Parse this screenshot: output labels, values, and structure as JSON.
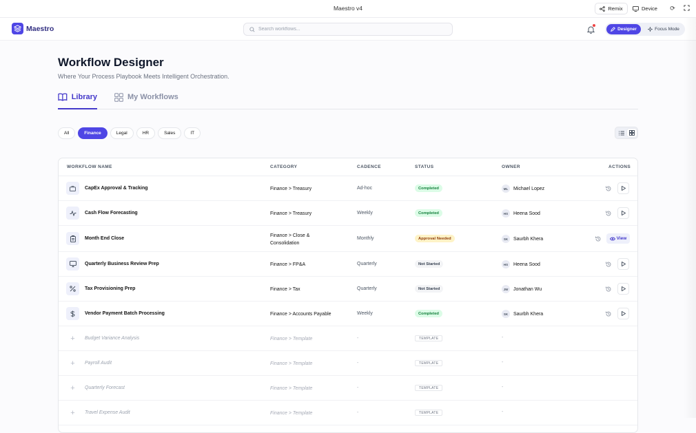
{
  "window": {
    "title": "Maestro v4",
    "remix_label": "Remix",
    "device_label": "Device"
  },
  "header": {
    "brand": "Maestro",
    "search_placeholder": "Search workflows...",
    "modes": {
      "designer": "Designer",
      "focus": "Focus Mode"
    }
  },
  "page": {
    "title": "Workflow Designer",
    "subtitle": "Where Your Process Playbook Meets Intelligent Orchestration.",
    "tabs": {
      "library": "Library",
      "my_workflows": "My Workflows"
    }
  },
  "filters": {
    "chips": [
      "All",
      "Finance",
      "Legal",
      "HR",
      "Sales",
      "IT"
    ],
    "active": "Finance"
  },
  "table": {
    "columns": [
      "WORKFLOW NAME",
      "CATEGORY",
      "CADENCE",
      "STATUS",
      "OWNER",
      "ACTIONS"
    ],
    "view_label": "View",
    "rows": [
      {
        "name": "CapEx Approval & Tracking",
        "category": "Finance > Treasury",
        "cadence": "Ad-hoc",
        "status": "Completed",
        "owner_initials": "ML",
        "owner": "Michael Lopez"
      },
      {
        "name": "Cash Flow Forecasting",
        "category": "Finance > Treasury",
        "cadence": "Weekly",
        "status": "Completed",
        "owner_initials": "HS",
        "owner": "Heena Sood"
      },
      {
        "name": "Month End Close",
        "category": "Finance > Close & Consolidation",
        "cadence": "Monthly",
        "status": "Approval Needed",
        "owner_initials": "SK",
        "owner": "Saurbh Khera"
      },
      {
        "name": "Quarterly Business Review Prep",
        "category": "Finance > FP&A",
        "cadence": "Quarterly",
        "status": "Not Started",
        "owner_initials": "HS",
        "owner": "Heena Sood"
      },
      {
        "name": "Tax Provisioning Prep",
        "category": "Finance > Tax",
        "cadence": "Quarterly",
        "status": "Not Started",
        "owner_initials": "JW",
        "owner": "Jonathan Wu"
      },
      {
        "name": "Vendor Payment Batch Processing",
        "category": "Finance > Accounts Payable",
        "cadence": "Weekly",
        "status": "Completed",
        "owner_initials": "SK",
        "owner": "Saurbh Khera"
      }
    ],
    "templates": [
      {
        "name": "Budget Variance Analysis",
        "category": "Finance > Template",
        "cadence": "-",
        "status": "TEMPLATE",
        "owner": "-"
      },
      {
        "name": "Payroll Audit",
        "category": "Finance > Template",
        "cadence": "-",
        "status": "TEMPLATE",
        "owner": "-"
      },
      {
        "name": "Quarterly Forecast",
        "category": "Finance > Template",
        "cadence": "-",
        "status": "TEMPLATE",
        "owner": "-"
      },
      {
        "name": "Travel Expense Audit",
        "category": "Finance > Template",
        "cadence": "-",
        "status": "TEMPLATE",
        "owner": "-"
      }
    ]
  },
  "colors": {
    "accent": "#4f46e5",
    "completed": "#15803d",
    "approval": "#92400e"
  }
}
